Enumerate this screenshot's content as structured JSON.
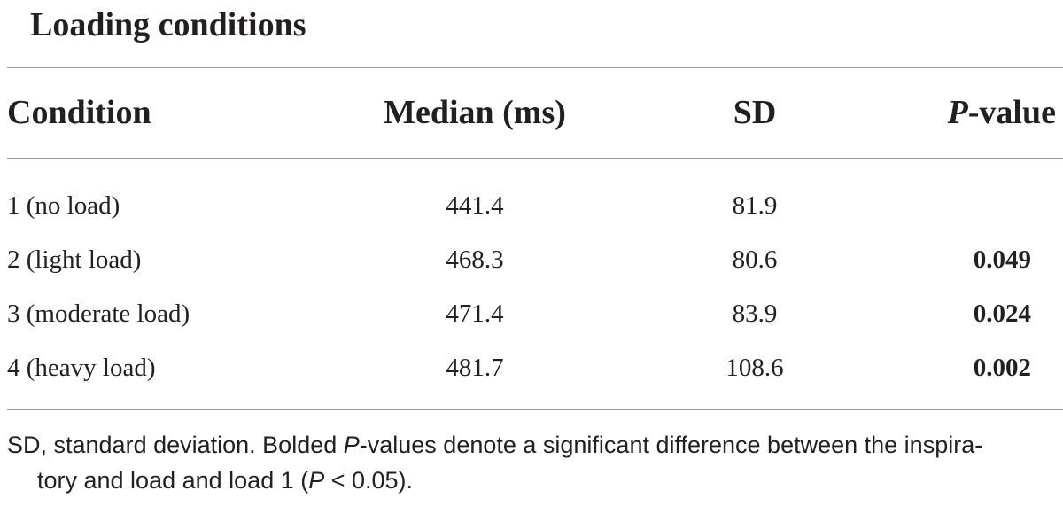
{
  "title": "Loading conditions",
  "columns": {
    "condition": "Condition",
    "median": "Median (ms)",
    "sd": "SD",
    "p_italic": "P",
    "p_suffix": "-value"
  },
  "rows": [
    {
      "condition": "1 (no load)",
      "median": "441.4",
      "sd": "81.9",
      "p": ""
    },
    {
      "condition": "2 (light load)",
      "median": "468.3",
      "sd": "80.6",
      "p": "0.049"
    },
    {
      "condition": "3 (moderate load)",
      "median": "471.4",
      "sd": "83.9",
      "p": "0.024"
    },
    {
      "condition": "4 (heavy load)",
      "median": "481.7",
      "sd": "108.6",
      "p": "0.002"
    }
  ],
  "footnote": {
    "part1": "SD, standard deviation. Bolded ",
    "p_italic": "P",
    "part2": "-values denote a significant difference between the inspira-",
    "part3": "tory and load and load 1 (",
    "p_italic_2": "P",
    "part4": " < 0.05)."
  }
}
